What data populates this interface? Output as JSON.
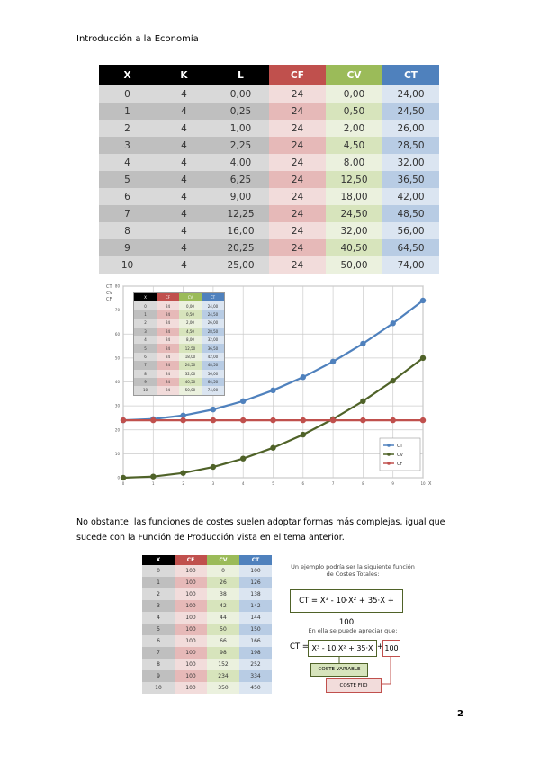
{
  "header": {
    "title": "Introducción a la Economía"
  },
  "table1": {
    "headers": [
      "X",
      "K",
      "L",
      "CF",
      "CV",
      "CT"
    ],
    "rows": [
      [
        "0",
        "4",
        "0,00",
        "24",
        "0,00",
        "24,00"
      ],
      [
        "1",
        "4",
        "0,25",
        "24",
        "0,50",
        "24,50"
      ],
      [
        "2",
        "4",
        "1,00",
        "24",
        "2,00",
        "26,00"
      ],
      [
        "3",
        "4",
        "2,25",
        "24",
        "4,50",
        "28,50"
      ],
      [
        "4",
        "4",
        "4,00",
        "24",
        "8,00",
        "32,00"
      ],
      [
        "5",
        "4",
        "6,25",
        "24",
        "12,50",
        "36,50"
      ],
      [
        "6",
        "4",
        "9,00",
        "24",
        "18,00",
        "42,00"
      ],
      [
        "7",
        "4",
        "12,25",
        "24",
        "24,50",
        "48,50"
      ],
      [
        "8",
        "4",
        "16,00",
        "24",
        "32,00",
        "56,00"
      ],
      [
        "9",
        "4",
        "20,25",
        "24",
        "40,50",
        "64,50"
      ],
      [
        "10",
        "4",
        "25,00",
        "24",
        "50,00",
        "74,00"
      ]
    ]
  },
  "chart": {
    "type": "line",
    "y_label": [
      "CT",
      "CV",
      "CF"
    ],
    "x_label": "X",
    "x": [
      0,
      1,
      2,
      3,
      4,
      5,
      6,
      7,
      8,
      9,
      10
    ],
    "series": [
      {
        "name": "CT",
        "color": "#4f81bd",
        "values": [
          24,
          24.5,
          26,
          28.5,
          32,
          36.5,
          42,
          48.5,
          56,
          64.5,
          74
        ]
      },
      {
        "name": "CV",
        "color": "#4f6228",
        "values": [
          0,
          0.5,
          2,
          4.5,
          8,
          12.5,
          18,
          24.5,
          32,
          40.5,
          50
        ]
      },
      {
        "name": "CF",
        "color": "#c0504d",
        "values": [
          24,
          24,
          24,
          24,
          24,
          24,
          24,
          24,
          24,
          24,
          24
        ]
      }
    ],
    "xlim": [
      0,
      10
    ],
    "xticks": [
      0,
      1,
      2,
      3,
      4,
      5,
      6,
      7,
      8,
      9,
      10
    ],
    "ylim": [
      0,
      80
    ],
    "yticks": [
      0,
      10,
      20,
      30,
      40,
      50,
      60,
      70,
      80
    ],
    "grid": true,
    "legend": "lower right"
  },
  "paragraph": "No obstante, las funciones de costes suelen adoptar formas más complejas, igual que sucede con la Función de Producción vista en el tema anterior.",
  "table2": {
    "headers": [
      "X",
      "CF",
      "CV",
      "CT"
    ],
    "rows": [
      [
        "0",
        "100",
        "0",
        "100"
      ],
      [
        "1",
        "100",
        "26",
        "126"
      ],
      [
        "2",
        "100",
        "38",
        "138"
      ],
      [
        "3",
        "100",
        "42",
        "142"
      ],
      [
        "4",
        "100",
        "44",
        "144"
      ],
      [
        "5",
        "100",
        "50",
        "150"
      ],
      [
        "6",
        "100",
        "66",
        "166"
      ],
      [
        "7",
        "100",
        "98",
        "198"
      ],
      [
        "8",
        "100",
        "152",
        "252"
      ],
      [
        "9",
        "100",
        "234",
        "334"
      ],
      [
        "10",
        "100",
        "350",
        "450"
      ]
    ]
  },
  "example": {
    "intro": "Un ejemplo podría ser la siguiente función de Costes Totales:",
    "formula": "CT = X³ - 10·X² + 35·X + 100",
    "note": "En ella se puede apreciar que:",
    "lhs": "CT =",
    "variable_part": "X³ - 10·X² + 35·X",
    "plus": "+",
    "fixed_part": "100",
    "variable_label": "COSTE VARIABLE",
    "fixed_label": "COSTE FIJO"
  },
  "footer": {
    "page": "2"
  }
}
